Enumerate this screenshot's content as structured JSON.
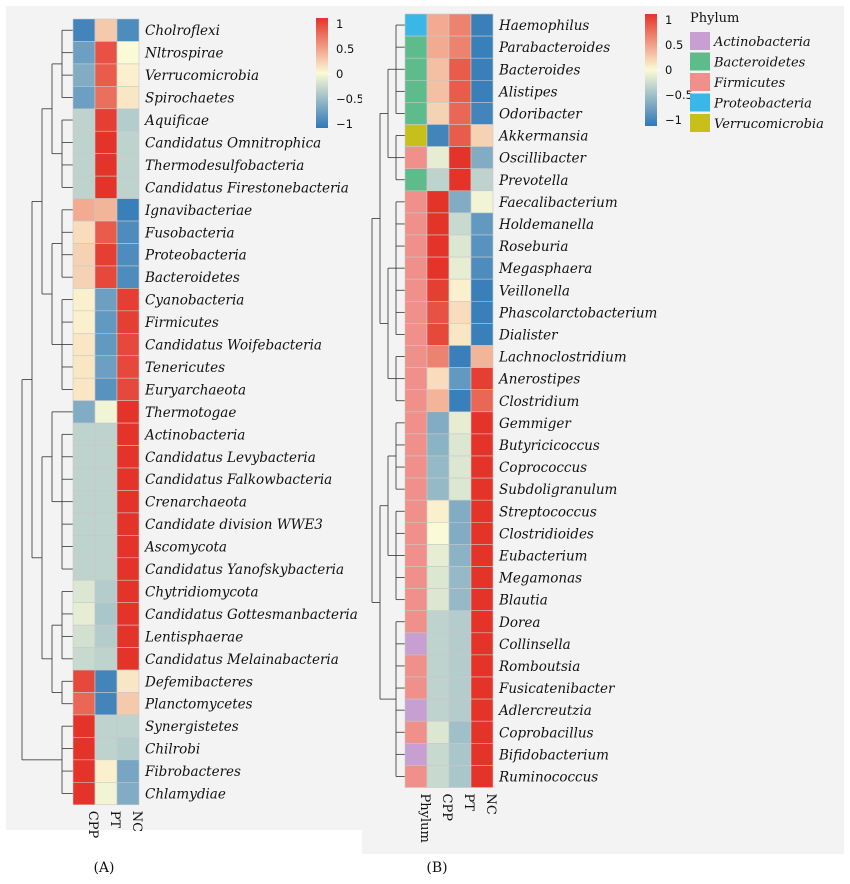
{
  "colors": {
    "low": "#2f78b8",
    "mid": "#fbfad6",
    "high": "#e4342a",
    "phyla": {
      "Actinobacteria": "#c79fd0",
      "Bacteroidetes": "#5dbb8c",
      "Firmicutes": "#f0908a",
      "Proteobacteria": "#3ab7e7",
      "Verrucomicrobia": "#c8c01a"
    }
  },
  "chart_data": [
    {
      "type": "heatmap",
      "panel_label": "(A)",
      "columns": [
        "CPP",
        "PT",
        "NC"
      ],
      "colorbar_ticks": [
        "1",
        "0.5",
        "0",
        "−0.5",
        "−1"
      ],
      "rows": [
        {
          "name": "Cholroflexi",
          "values": [
            -0.9,
            0.25,
            -0.85
          ]
        },
        {
          "name": "Nltrospirae",
          "values": [
            -0.7,
            0.85,
            0.0
          ]
        },
        {
          "name": "Verrucomicrobia",
          "values": [
            -0.6,
            0.8,
            0.05
          ]
        },
        {
          "name": "Spirochaetes",
          "values": [
            -0.7,
            0.7,
            0.1
          ]
        },
        {
          "name": "Aquificae",
          "values": [
            -0.3,
            0.95,
            -0.35
          ]
        },
        {
          "name": "Candidatus Omnitrophica",
          "values": [
            -0.3,
            1.0,
            -0.3
          ]
        },
        {
          "name": "Thermodesulfobacteria",
          "values": [
            -0.3,
            1.0,
            -0.3
          ]
        },
        {
          "name": "Candidatus Firestonebacteria",
          "values": [
            -0.3,
            1.0,
            -0.3
          ]
        },
        {
          "name": "Ignavibacteriae",
          "values": [
            0.4,
            0.35,
            -0.95
          ]
        },
        {
          "name": "Fusobacteria",
          "values": [
            0.15,
            0.8,
            -0.85
          ]
        },
        {
          "name": "Proteobacteria",
          "values": [
            0.2,
            0.95,
            -0.85
          ]
        },
        {
          "name": "Bacteroidetes",
          "values": [
            0.2,
            0.9,
            -0.85
          ]
        },
        {
          "name": "Cyanobacteria",
          "values": [
            0.05,
            -0.7,
            0.95
          ]
        },
        {
          "name": "Firmicutes",
          "values": [
            0.05,
            -0.75,
            0.95
          ]
        },
        {
          "name": "Candidatus Woifebacteria",
          "values": [
            0.1,
            -0.75,
            0.9
          ]
        },
        {
          "name": "Tenericutes",
          "values": [
            0.1,
            -0.7,
            0.9
          ]
        },
        {
          "name": "Euryarchaeota",
          "values": [
            0.1,
            -0.8,
            0.9
          ]
        },
        {
          "name": "Thermotogae",
          "values": [
            -0.6,
            -0.05,
            1.0
          ]
        },
        {
          "name": "Actinobacteria",
          "values": [
            -0.3,
            -0.3,
            1.0
          ]
        },
        {
          "name": "Candidatus Levybacteria",
          "values": [
            -0.3,
            -0.3,
            1.0
          ]
        },
        {
          "name": "Candidatus Falkowbacteria",
          "values": [
            -0.3,
            -0.3,
            1.0
          ]
        },
        {
          "name": "Crenarchaeota",
          "values": [
            -0.3,
            -0.3,
            1.0
          ]
        },
        {
          "name": "Candidate division WWE3",
          "values": [
            -0.3,
            -0.3,
            1.0
          ]
        },
        {
          "name": "Ascomycota",
          "values": [
            -0.3,
            -0.3,
            1.0
          ]
        },
        {
          "name": "Candidatus Yanofskybacteria",
          "values": [
            -0.3,
            -0.3,
            1.0
          ]
        },
        {
          "name": "Chytridiomycota",
          "values": [
            -0.15,
            -0.35,
            1.0
          ]
        },
        {
          "name": "Candidatus Gottesmanbacteria",
          "values": [
            -0.1,
            -0.4,
            1.0
          ]
        },
        {
          "name": "Lentisphaerae",
          "values": [
            -0.2,
            -0.35,
            1.0
          ]
        },
        {
          "name": "Candidatus Melainabacteria",
          "values": [
            -0.25,
            -0.3,
            1.0
          ]
        },
        {
          "name": "Defemibacteres",
          "values": [
            0.9,
            -0.9,
            0.1
          ]
        },
        {
          "name": "Planctomycetes",
          "values": [
            0.75,
            -0.9,
            0.25
          ]
        },
        {
          "name": "Synergistetes",
          "values": [
            1.0,
            -0.3,
            -0.3
          ]
        },
        {
          "name": "Chilrobi",
          "values": [
            1.0,
            -0.3,
            -0.35
          ]
        },
        {
          "name": "Fibrobacteres",
          "values": [
            1.0,
            0.05,
            -0.65
          ]
        },
        {
          "name": "Chlamydiae",
          "values": [
            1.0,
            -0.05,
            -0.6
          ]
        }
      ]
    },
    {
      "type": "heatmap",
      "panel_label": "(B)",
      "columns": [
        "Phylum",
        "CPP",
        "PT",
        "NC"
      ],
      "colorbar_ticks": [
        "1",
        "0.5",
        "0",
        "−0.5",
        "−1"
      ],
      "legend_title": "Phylum",
      "legend": [
        "Actinobacteria",
        "Bacteroidetes",
        "Firmicutes",
        "Proteobacteria",
        "Verrucomicrobia"
      ],
      "rows": [
        {
          "name": "Haemophilus",
          "phylum": "Proteobacteria",
          "values": [
            0.4,
            0.6,
            -0.95
          ]
        },
        {
          "name": "Parabacteroides",
          "phylum": "Bacteroidetes",
          "values": [
            0.4,
            0.6,
            -0.95
          ]
        },
        {
          "name": "Bacteroides",
          "phylum": "Bacteroidetes",
          "values": [
            0.3,
            0.8,
            -0.95
          ]
        },
        {
          "name": "Alistipes",
          "phylum": "Bacteroidetes",
          "values": [
            0.3,
            0.8,
            -0.95
          ]
        },
        {
          "name": "Odoribacter",
          "phylum": "Bacteroidetes",
          "values": [
            0.2,
            0.75,
            -0.9
          ]
        },
        {
          "name": "Akkermansia",
          "phylum": "Verrucomicrobia",
          "values": [
            -0.9,
            0.8,
            0.2
          ]
        },
        {
          "name": "Oscillibacter",
          "phylum": "Firmicutes",
          "values": [
            -0.1,
            1.0,
            -0.6
          ]
        },
        {
          "name": "Prevotella",
          "phylum": "Bacteroidetes",
          "values": [
            -0.3,
            1.0,
            -0.3
          ]
        },
        {
          "name": "Faecalibacterium",
          "phylum": "Firmicutes",
          "values": [
            1.0,
            -0.6,
            -0.05
          ]
        },
        {
          "name": "Holdemanella",
          "phylum": "Firmicutes",
          "values": [
            1.0,
            -0.25,
            -0.75
          ]
        },
        {
          "name": "Roseburia",
          "phylum": "Firmicutes",
          "values": [
            1.0,
            -0.15,
            -0.8
          ]
        },
        {
          "name": "Megasphaera",
          "phylum": "Firmicutes",
          "values": [
            1.0,
            -0.1,
            -0.85
          ]
        },
        {
          "name": "Veillonella",
          "phylum": "Firmicutes",
          "values": [
            0.95,
            0.05,
            -0.95
          ]
        },
        {
          "name": "Phascolarctobacterium",
          "phylum": "Firmicutes",
          "values": [
            0.85,
            0.15,
            -0.95
          ]
        },
        {
          "name": "Dialister",
          "phylum": "Firmicutes",
          "values": [
            0.9,
            0.1,
            -0.95
          ]
        },
        {
          "name": "Lachnoclostridium",
          "phylum": "Firmicutes",
          "values": [
            0.6,
            -0.95,
            0.35
          ]
        },
        {
          "name": "Anerostipes",
          "phylum": "Firmicutes",
          "values": [
            0.15,
            -0.75,
            0.95
          ]
        },
        {
          "name": "Clostridium",
          "phylum": "Firmicutes",
          "values": [
            0.35,
            -0.95,
            0.75
          ]
        },
        {
          "name": "Gemmiger",
          "phylum": "Firmicutes",
          "values": [
            -0.6,
            -0.1,
            1.0
          ]
        },
        {
          "name": "Butyricicoccus",
          "phylum": "Firmicutes",
          "values": [
            -0.55,
            -0.15,
            1.0
          ]
        },
        {
          "name": "Coprococcus",
          "phylum": "Firmicutes",
          "values": [
            -0.5,
            -0.15,
            1.0
          ]
        },
        {
          "name": "Subdoligranulum",
          "phylum": "Firmicutes",
          "values": [
            -0.5,
            -0.15,
            1.0
          ]
        },
        {
          "name": "Streptococcus",
          "phylum": "Firmicutes",
          "values": [
            0.05,
            -0.6,
            1.0
          ]
        },
        {
          "name": "Clostridioides",
          "phylum": "Firmicutes",
          "values": [
            0.0,
            -0.6,
            1.0
          ]
        },
        {
          "name": "Eubacterium",
          "phylum": "Firmicutes",
          "values": [
            -0.1,
            -0.55,
            1.0
          ]
        },
        {
          "name": "Megamonas",
          "phylum": "Firmicutes",
          "values": [
            -0.15,
            -0.5,
            1.0
          ]
        },
        {
          "name": "Blautia",
          "phylum": "Firmicutes",
          "values": [
            -0.15,
            -0.5,
            1.0
          ]
        },
        {
          "name": "Dorea",
          "phylum": "Firmicutes",
          "values": [
            -0.3,
            -0.35,
            1.0
          ]
        },
        {
          "name": "Collinsella",
          "phylum": "Actinobacteria",
          "values": [
            -0.3,
            -0.35,
            1.0
          ]
        },
        {
          "name": "Romboutsia",
          "phylum": "Firmicutes",
          "values": [
            -0.3,
            -0.35,
            1.0
          ]
        },
        {
          "name": "Fusicatenibacter",
          "phylum": "Firmicutes",
          "values": [
            -0.3,
            -0.35,
            1.0
          ]
        },
        {
          "name": "Adlercreutzia",
          "phylum": "Actinobacteria",
          "values": [
            -0.3,
            -0.35,
            1.0
          ]
        },
        {
          "name": "Coprobacillus",
          "phylum": "Firmicutes",
          "values": [
            -0.15,
            -0.45,
            1.0
          ]
        },
        {
          "name": "Bifidobacterium",
          "phylum": "Actinobacteria",
          "values": [
            -0.25,
            -0.4,
            1.0
          ]
        },
        {
          "name": "Ruminococcus",
          "phylum": "Firmicutes",
          "values": [
            -0.25,
            -0.4,
            1.0
          ]
        }
      ]
    }
  ]
}
